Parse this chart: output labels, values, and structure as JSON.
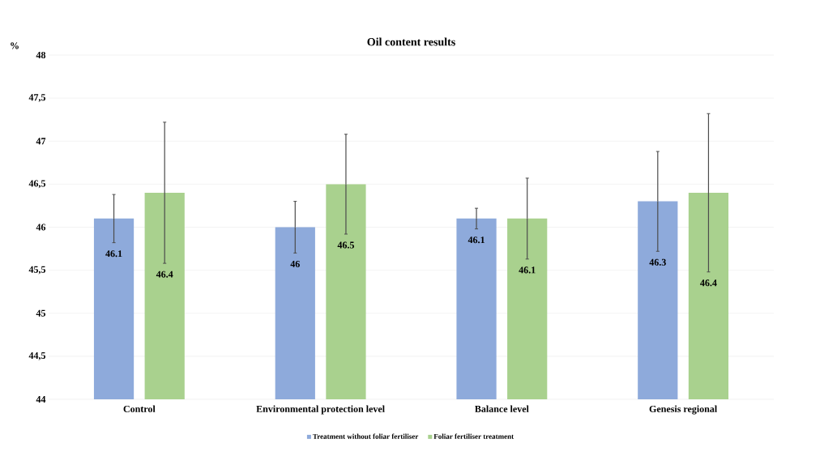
{
  "chart_data": {
    "type": "bar",
    "title": "Oil content results",
    "ylabel": "%",
    "categories": [
      "Control",
      "Environmental protection level",
      "Balance level",
      "Genesis regional"
    ],
    "series": [
      {
        "name": "Treatment without foliar fertiliser",
        "color": "#8eaadb",
        "values": [
          46.1,
          46,
          46.1,
          46.3
        ],
        "errors": [
          0.28,
          0.3,
          0.12,
          0.58
        ]
      },
      {
        "name": "Foliar fertiliser treatment",
        "color": "#a9d18e",
        "values": [
          46.4,
          46.5,
          46.1,
          46.4
        ],
        "errors": [
          0.82,
          0.58,
          0.47,
          0.92
        ]
      }
    ],
    "ylim": [
      44,
      48
    ],
    "yticks": [
      44,
      {
        "value": 44.5,
        "label": "44,5"
      },
      45,
      {
        "value": 45.5,
        "label": "45,5"
      },
      46,
      {
        "value": 46.5,
        "label": "46,5"
      },
      47,
      {
        "value": 47.5,
        "label": "47,5"
      },
      48
    ],
    "grid": "y",
    "legend": "bottom",
    "data_labels": true
  }
}
